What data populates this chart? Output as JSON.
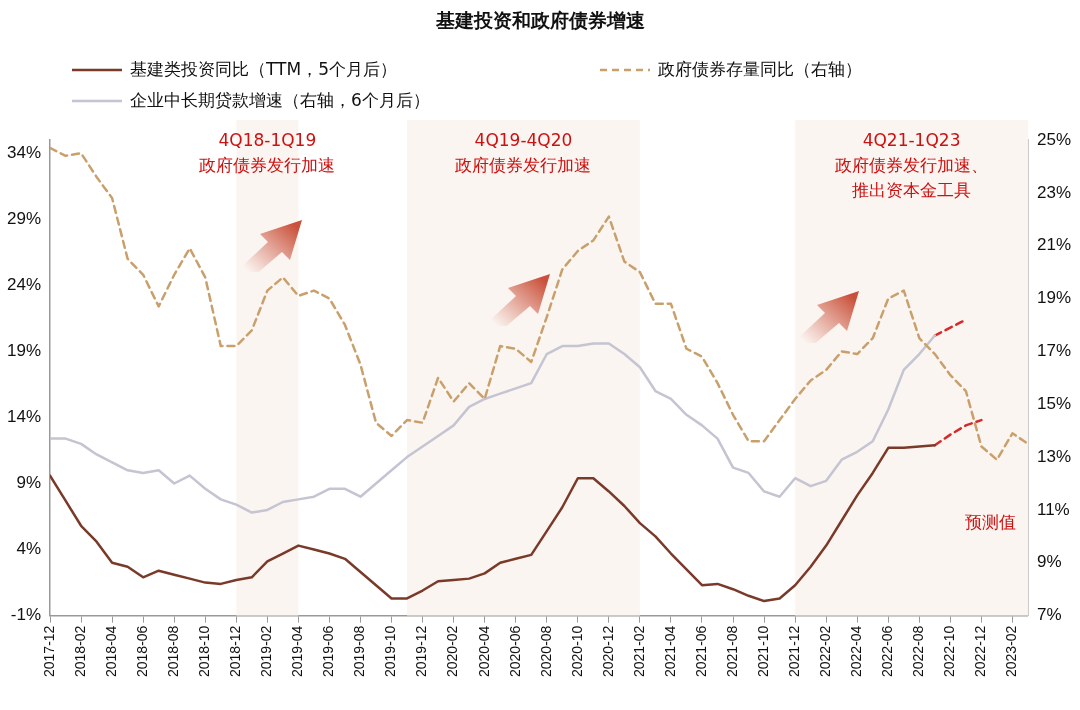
{
  "chart_data": {
    "type": "line",
    "title": "基建投资和政府债券增速",
    "x": [
      "2017-12",
      "2018-01",
      "2018-02",
      "2018-03",
      "2018-04",
      "2018-05",
      "2018-06",
      "2018-07",
      "2018-08",
      "2018-09",
      "2018-10",
      "2018-11",
      "2018-12",
      "2019-01",
      "2019-02",
      "2019-03",
      "2019-04",
      "2019-05",
      "2019-06",
      "2019-07",
      "2019-08",
      "2019-09",
      "2019-10",
      "2019-11",
      "2019-12",
      "2020-01",
      "2020-02",
      "2020-03",
      "2020-04",
      "2020-05",
      "2020-06",
      "2020-07",
      "2020-08",
      "2020-09",
      "2020-10",
      "2020-11",
      "2020-12",
      "2021-01",
      "2021-02",
      "2021-03",
      "2021-04",
      "2021-05",
      "2021-06",
      "2021-07",
      "2021-08",
      "2021-09",
      "2021-10",
      "2021-11",
      "2021-12",
      "2022-01",
      "2022-02",
      "2022-03",
      "2022-04",
      "2022-05",
      "2022-06",
      "2022-07",
      "2022-08",
      "2022-09",
      "2022-10",
      "2022-11",
      "2022-12",
      "2023-01",
      "2023-02",
      "2023-03"
    ],
    "series": [
      {
        "name": "基建类投资同比（TTM，5个月后）",
        "color": "#7a3a2a",
        "line_style": "solid",
        "values": [
          9.6,
          7.7,
          5.8,
          4.6,
          3.0,
          2.7,
          1.9,
          2.4,
          2.1,
          1.8,
          1.5,
          1.4,
          1.7,
          1.9,
          3.1,
          3.7,
          4.3,
          4.0,
          3.7,
          3.3,
          2.3,
          1.3,
          0.3,
          0.3,
          0.9,
          1.6,
          1.7,
          1.8,
          2.2,
          3.0,
          3.3,
          3.6,
          5.4,
          7.2,
          9.4,
          9.4,
          8.4,
          7.3,
          6.0,
          5.0,
          3.7,
          2.5,
          1.3,
          1.4,
          1.0,
          0.5,
          0.1,
          0.3,
          1.3,
          2.7,
          4.3,
          6.2,
          8.1,
          9.8,
          11.7,
          11.7,
          11.8,
          11.9,
          null,
          null,
          null,
          null,
          null,
          null
        ]
      },
      {
        "name": "政府债券存量同比（右轴）",
        "color": "#c9a06c",
        "line_style": "dashed",
        "axis": "y2",
        "values": [
          24.7,
          24.4,
          24.5,
          23.6,
          22.8,
          20.5,
          19.9,
          18.7,
          19.9,
          20.9,
          19.8,
          17.2,
          17.2,
          17.8,
          19.3,
          19.8,
          19.1,
          19.3,
          19.0,
          18.0,
          16.5,
          14.3,
          13.8,
          14.4,
          14.3,
          16.0,
          15.1,
          15.8,
          15.2,
          17.2,
          17.1,
          16.6,
          18.3,
          20.1,
          20.8,
          21.2,
          22.1,
          20.4,
          20.0,
          18.8,
          18.8,
          17.1,
          16.8,
          15.8,
          14.6,
          13.6,
          13.6,
          14.4,
          15.2,
          15.9,
          16.3,
          17.0,
          16.9,
          17.5,
          19.0,
          19.3,
          17.5,
          16.9,
          16.1,
          15.5,
          13.4,
          12.9,
          13.9,
          13.5
        ]
      },
      {
        "name": "企业中长期贷款增速（右轴，6个月后）",
        "color": "#c4c4d2",
        "line_style": "solid",
        "axis": "y2",
        "values": [
          13.7,
          13.7,
          13.5,
          13.1,
          12.8,
          12.5,
          12.4,
          12.5,
          12.0,
          12.3,
          11.8,
          11.4,
          11.2,
          10.9,
          11.0,
          11.3,
          11.4,
          11.5,
          11.8,
          11.8,
          11.5,
          12.0,
          12.5,
          13.0,
          13.4,
          13.8,
          14.2,
          14.9,
          15.2,
          15.4,
          15.6,
          15.8,
          16.9,
          17.2,
          17.2,
          17.3,
          17.3,
          16.9,
          16.4,
          15.5,
          15.2,
          14.6,
          14.2,
          13.7,
          12.6,
          12.4,
          11.7,
          11.5,
          12.2,
          11.9,
          12.1,
          12.9,
          13.2,
          13.6,
          14.8,
          16.3,
          16.9,
          17.6,
          null,
          null,
          null,
          null,
          null,
          null
        ]
      },
      {
        "color": "#d62a2a",
        "line_style": "dashed",
        "values": [
          null,
          null,
          null,
          null,
          null,
          null,
          null,
          null,
          null,
          null,
          null,
          null,
          null,
          null,
          null,
          null,
          null,
          null,
          null,
          null,
          null,
          null,
          null,
          null,
          null,
          null,
          null,
          null,
          null,
          null,
          null,
          null,
          null,
          null,
          null,
          null,
          null,
          null,
          null,
          null,
          null,
          null,
          null,
          null,
          null,
          null,
          null,
          null,
          null,
          null,
          null,
          null,
          null,
          null,
          null,
          null,
          null,
          11.9,
          12.7,
          13.4,
          13.8,
          null,
          null,
          null
        ]
      },
      {
        "color": "#d62a2a",
        "line_style": "dashed",
        "axis": "y2",
        "values": [
          null,
          null,
          null,
          null,
          null,
          null,
          null,
          null,
          null,
          null,
          null,
          null,
          null,
          null,
          null,
          null,
          null,
          null,
          null,
          null,
          null,
          null,
          null,
          null,
          null,
          null,
          null,
          null,
          null,
          null,
          null,
          null,
          null,
          null,
          null,
          null,
          null,
          null,
          null,
          null,
          null,
          null,
          null,
          null,
          null,
          null,
          null,
          null,
          null,
          null,
          null,
          null,
          null,
          null,
          null,
          null,
          null,
          17.6,
          17.9,
          18.2,
          null,
          null,
          null,
          null
        ]
      }
    ],
    "xlim": [
      "2017-12",
      "2023-03"
    ],
    "xticks": [
      "2017-12",
      "2018-02",
      "2018-04",
      "2018-06",
      "2018-08",
      "2018-10",
      "2018-12",
      "2019-02",
      "2019-04",
      "2019-06",
      "2019-08",
      "2019-10",
      "2019-12",
      "2020-02",
      "2020-04",
      "2020-06",
      "2020-08",
      "2020-10",
      "2020-12",
      "2021-02",
      "2021-04",
      "2021-06",
      "2021-08",
      "2021-10",
      "2021-12",
      "2022-02",
      "2022-04",
      "2022-06",
      "2022-08",
      "2022-10",
      "2022-12",
      "2023-02"
    ],
    "ylim": [
      -1,
      35
    ],
    "yticks": [
      {
        "value": -1,
        "label": "-1%"
      },
      {
        "value": 4,
        "label": "4%"
      },
      {
        "value": 9,
        "label": "9%"
      },
      {
        "value": 14,
        "label": "14%"
      },
      {
        "value": 19,
        "label": "19%"
      },
      {
        "value": 24,
        "label": "24%"
      },
      {
        "value": 29,
        "label": "29%"
      },
      {
        "value": 34,
        "label": "34%"
      }
    ],
    "y2lim": [
      7,
      25
    ],
    "y2ticks": [
      {
        "value": 7,
        "label": "7%"
      },
      {
        "value": 9,
        "label": "9%"
      },
      {
        "value": 11,
        "label": "11%"
      },
      {
        "value": 13,
        "label": "13%"
      },
      {
        "value": 15,
        "label": "15%"
      },
      {
        "value": 17,
        "label": "17%"
      },
      {
        "value": 19,
        "label": "19%"
      },
      {
        "value": 21,
        "label": "21%"
      },
      {
        "value": 23,
        "label": "23%"
      },
      {
        "value": 25,
        "label": "25%"
      }
    ],
    "bands": [
      {
        "axis": "x",
        "from": "2018-12",
        "to": "2019-04",
        "label": "4Q18-1Q19\n政府债券发行加速",
        "color": "#fbf5f1"
      },
      {
        "axis": "x",
        "from": "2019-11",
        "to": "2021-02",
        "label": "4Q19-4Q20\n政府债券发行加速",
        "color": "#fbf5f1"
      },
      {
        "axis": "x",
        "from": "2021-12",
        "to": "2023-03",
        "label": "4Q21-1Q23\n政府债券发行加速、推出资本金工具",
        "color": "#fbf5f1"
      }
    ],
    "annotations": [
      "预测值"
    ],
    "legend": "top",
    "grid": false,
    "marker": "none"
  }
}
